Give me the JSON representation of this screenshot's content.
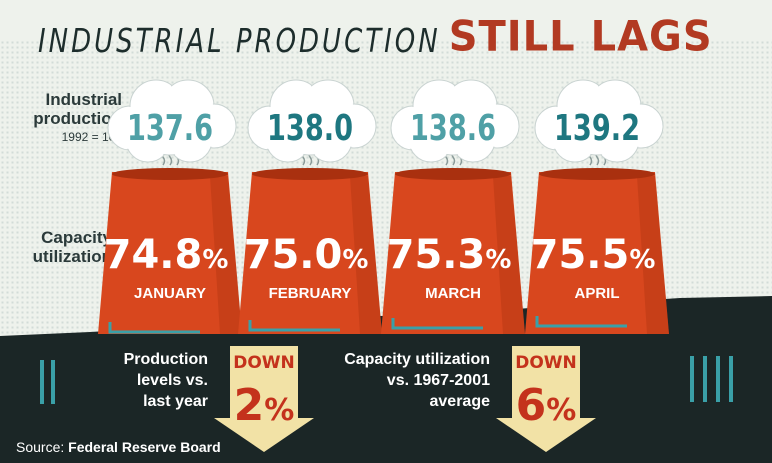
{
  "title": {
    "part1": "INDUSTRIAL PRODUCTION",
    "part2": "STILL LAGS"
  },
  "labels": {
    "production_line1": "Industrial",
    "production_line2": "production",
    "production_base": "1992 = 100",
    "capacity_line1": "Capacity",
    "capacity_line2": "utilization"
  },
  "chart_data": {
    "type": "table",
    "categories": [
      "JANUARY",
      "FEBRUARY",
      "MARCH",
      "APRIL"
    ],
    "series": [
      {
        "name": "Industrial production",
        "values": [
          137.6,
          138.0,
          138.6,
          139.2
        ],
        "labels": [
          "137.6",
          "138.0",
          "138.6",
          "139.2"
        ]
      },
      {
        "name": "Capacity utilization",
        "values": [
          74.8,
          75.0,
          75.3,
          75.5
        ],
        "labels": [
          "74.8",
          "75.0",
          "75.3",
          "75.5"
        ],
        "unit": "%"
      }
    ]
  },
  "callouts": [
    {
      "lines": [
        "Production",
        "levels vs.",
        "last year"
      ],
      "direction": "DOWN",
      "value": "2",
      "unit": "%"
    },
    {
      "lines": [
        "Capacity utilization",
        "vs. 1967-2001",
        "average"
      ],
      "direction": "DOWN",
      "value": "6",
      "unit": "%"
    }
  ],
  "source": {
    "prefix": "Source:",
    "name": "Federal Reserve Board"
  },
  "colors": {
    "background": "#eef2ec",
    "cloud_text_light": "#4fa0a6",
    "cloud_text_dark": "#1e7780",
    "stack": "#d8471e",
    "stack_shade": "#a9300f",
    "ground": "#1b2626",
    "accent_teal": "#3aa0a8",
    "arrow": "#f2e2a6",
    "arrow_text": "#c4321c",
    "title_red": "#b23a22"
  }
}
